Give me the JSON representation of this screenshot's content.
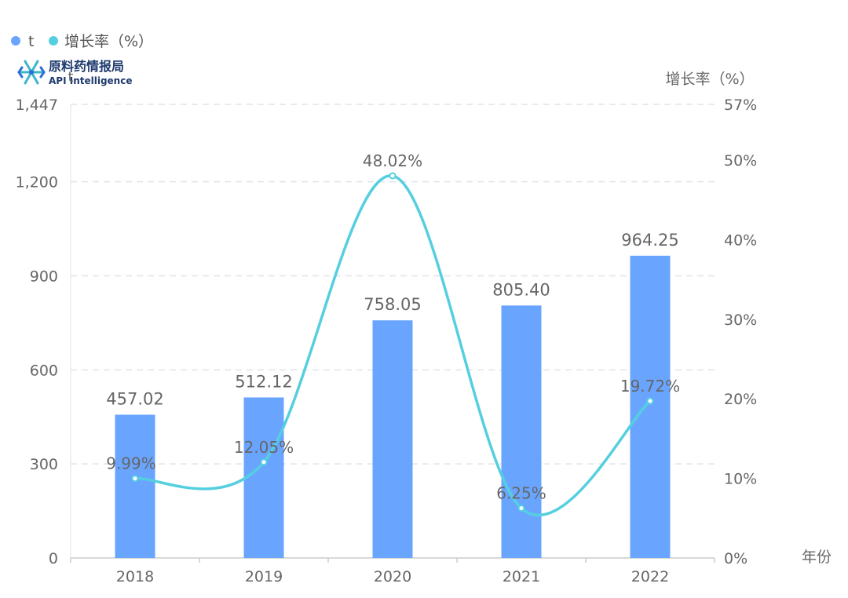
{
  "logo": {
    "text_cn": "原料药情报局",
    "text_en": "API Intelligence"
  },
  "chart_data": {
    "type": "bar",
    "categories": [
      "2018",
      "2019",
      "2020",
      "2021",
      "2022"
    ],
    "series": [
      {
        "name": "t",
        "type": "bar",
        "axis": "left",
        "color": "#69a5ff",
        "values": [
          457.02,
          512.12,
          758.05,
          805.4,
          964.25
        ],
        "labels": [
          "457.02",
          "512.12",
          "758.05",
          "805.40",
          "964.25"
        ]
      },
      {
        "name": "增长率（%）",
        "type": "line",
        "axis": "right",
        "color": "#55cfe0",
        "values": [
          9.99,
          12.05,
          48.02,
          6.25,
          19.72
        ],
        "labels": [
          "9.99%",
          "12.05%",
          "48.02%",
          "6.25%",
          "19.72%"
        ]
      }
    ],
    "y_left": {
      "label": "t",
      "ylim": [
        0,
        1447
      ],
      "ticks": [
        0,
        300,
        600,
        900,
        1200,
        1447
      ],
      "tick_labels": [
        "0",
        "300",
        "600",
        "900",
        "1,200",
        "1,447"
      ]
    },
    "y_right": {
      "label": "增长率（%）",
      "ylim": [
        0,
        57
      ],
      "ticks": [
        0,
        10,
        20,
        30,
        40,
        50,
        57
      ],
      "tick_labels": [
        "0%",
        "10%",
        "20%",
        "30%",
        "40%",
        "50%",
        "57%"
      ]
    },
    "xlabel": "年份",
    "grid": true,
    "legend_placement": "top-left",
    "colors": {
      "bar": "#69a5ff",
      "line": "#55cfe0",
      "grid": "#dfe3ea",
      "axis": "#cccccc",
      "text": "#666666"
    }
  }
}
